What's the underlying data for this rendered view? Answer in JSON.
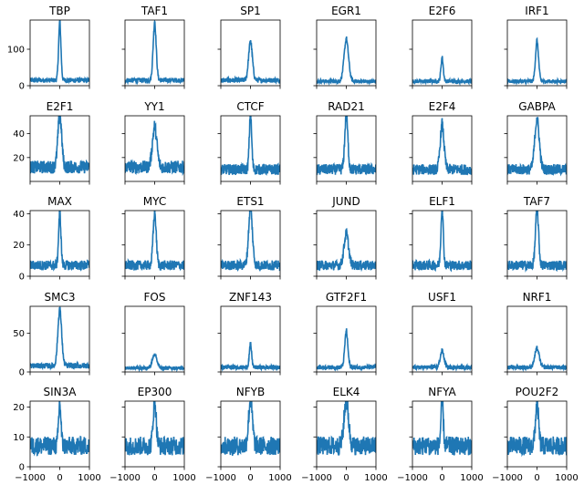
{
  "figure": {
    "series_color": "#1f77b4",
    "rows": [
      {
        "ylim": [
          0,
          180
        ],
        "yticks": [
          0,
          100
        ],
        "ymajor": 100
      },
      {
        "ylim": [
          0,
          55
        ],
        "yticks": [
          20,
          40
        ],
        "ymajor": 20
      },
      {
        "ylim": [
          0,
          42
        ],
        "yticks": [
          0,
          20,
          40
        ],
        "ymajor": 20
      },
      {
        "ylim": [
          0,
          85
        ],
        "yticks": [
          0,
          50
        ],
        "ymajor": 50
      },
      {
        "ylim": [
          0,
          22
        ],
        "yticks": [
          0,
          10,
          20
        ],
        "ymajor": 10
      }
    ],
    "xticks": [
      -1000,
      0,
      1000
    ],
    "xtick_labels": [
      "−1000",
      "0",
      "1000"
    ]
  },
  "chart_data": {
    "type": "line",
    "layout": "small-multiples 5x6, shared x axis, y axis shared per row",
    "xlim": [
      -1000,
      1000
    ],
    "panels": [
      {
        "title": "TBP",
        "baseline": 15,
        "peak": 170
      },
      {
        "title": "TAF1",
        "baseline": 15,
        "peak": 170
      },
      {
        "title": "SP1",
        "baseline": 15,
        "peak": 120
      },
      {
        "title": "EGR1",
        "baseline": 12,
        "peak": 125
      },
      {
        "title": "E2F6",
        "baseline": 12,
        "peak": 75
      },
      {
        "title": "IRF1",
        "baseline": 12,
        "peak": 120
      },
      {
        "title": "E2F1",
        "baseline": 12,
        "peak": 55
      },
      {
        "title": "YY1",
        "baseline": 12,
        "peak": 45
      },
      {
        "title": "CTCF",
        "baseline": 10,
        "peak": 55
      },
      {
        "title": "RAD21",
        "baseline": 10,
        "peak": 55
      },
      {
        "title": "E2F4",
        "baseline": 10,
        "peak": 47
      },
      {
        "title": "GABPA",
        "baseline": 10,
        "peak": 52
      },
      {
        "title": "MAX",
        "baseline": 7,
        "peak": 40
      },
      {
        "title": "MYC",
        "baseline": 7,
        "peak": 40
      },
      {
        "title": "ETS1",
        "baseline": 7,
        "peak": 43
      },
      {
        "title": "JUND",
        "baseline": 7,
        "peak": 27
      },
      {
        "title": "ELF1",
        "baseline": 7,
        "peak": 43
      },
      {
        "title": "TAF7",
        "baseline": 7,
        "peak": 43
      },
      {
        "title": "SMC3",
        "baseline": 8,
        "peak": 80
      },
      {
        "title": "FOS",
        "baseline": 5,
        "peak": 23
      },
      {
        "title": "ZNF143",
        "baseline": 6,
        "peak": 35
      },
      {
        "title": "GTF2F1",
        "baseline": 6,
        "peak": 52
      },
      {
        "title": "USF1",
        "baseline": 6,
        "peak": 27
      },
      {
        "title": "NRF1",
        "baseline": 6,
        "peak": 30
      },
      {
        "title": "SIN3A",
        "baseline": 7,
        "peak": 21
      },
      {
        "title": "EP300",
        "baseline": 7,
        "peak": 22
      },
      {
        "title": "NFYB",
        "baseline": 7,
        "peak": 22
      },
      {
        "title": "ELK4",
        "baseline": 7,
        "peak": 22
      },
      {
        "title": "NFYA",
        "baseline": 7,
        "peak": 22
      },
      {
        "title": "POU2F2",
        "baseline": 7,
        "peak": 21
      }
    ]
  }
}
